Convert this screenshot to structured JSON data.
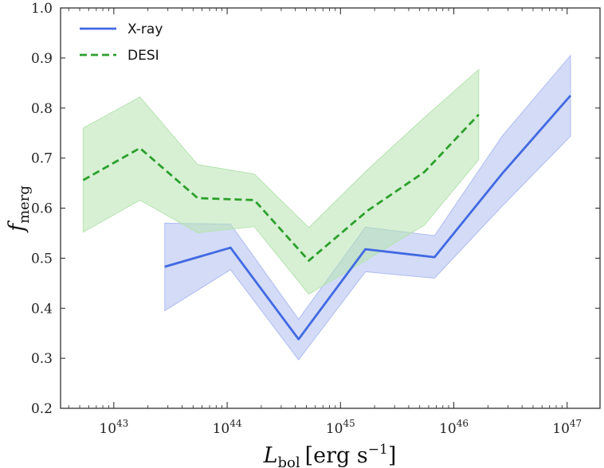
{
  "chart_data": {
    "type": "line",
    "xscale": "log",
    "xlim_log10": [
      42.53,
      47.29
    ],
    "ylim": [
      0.2,
      1.0
    ],
    "xlabel": "Lbol",
    "xlabel_units": "[erg s−1]",
    "xlabel_main": "L",
    "xlabel_sub": "bol",
    "xlabel_unit_open": "[erg s",
    "xlabel_unit_exp": "−1",
    "xlabel_unit_close": "]",
    "ylabel": "fmerg",
    "ylabel_main": "f",
    "ylabel_sub": "merg",
    "yticks": [
      "0.2",
      "0.3",
      "0.4",
      "0.5",
      "0.6",
      "0.7",
      "0.8",
      "0.9",
      "1.0"
    ],
    "xticks": [
      {
        "log10": 43,
        "base": "10",
        "exp": "43"
      },
      {
        "log10": 44,
        "base": "10",
        "exp": "44"
      },
      {
        "log10": 45,
        "base": "10",
        "exp": "45"
      },
      {
        "log10": 46,
        "base": "10",
        "exp": "46"
      },
      {
        "log10": 47,
        "base": "10",
        "exp": "47"
      }
    ],
    "legend_position": "top-left",
    "series": [
      {
        "name": "X-ray",
        "color": "#4169e1",
        "band_color": "#aebdf0",
        "style": "solid",
        "x_log10": [
          43.45,
          44.03,
          44.63,
          45.22,
          45.83,
          46.43,
          47.03
        ],
        "values": [
          0.483,
          0.521,
          0.338,
          0.518,
          0.502,
          0.67,
          0.825
        ],
        "lower": [
          0.395,
          0.477,
          0.297,
          0.473,
          0.46,
          0.605,
          0.744
        ],
        "upper": [
          0.57,
          0.568,
          0.378,
          0.562,
          0.545,
          0.745,
          0.905
        ]
      },
      {
        "name": "DESI",
        "color": "#2ca02c",
        "band_color": "#b6e3b0",
        "style": "dashed",
        "x_log10": [
          42.73,
          43.23,
          43.74,
          44.24,
          44.72,
          45.24,
          45.74,
          46.22
        ],
        "values": [
          0.656,
          0.72,
          0.62,
          0.616,
          0.495,
          0.595,
          0.672,
          0.787
        ],
        "lower": [
          0.552,
          0.616,
          0.551,
          0.563,
          0.428,
          0.498,
          0.566,
          0.697
        ],
        "upper": [
          0.76,
          0.822,
          0.687,
          0.668,
          0.561,
          0.677,
          0.781,
          0.877
        ]
      }
    ]
  }
}
